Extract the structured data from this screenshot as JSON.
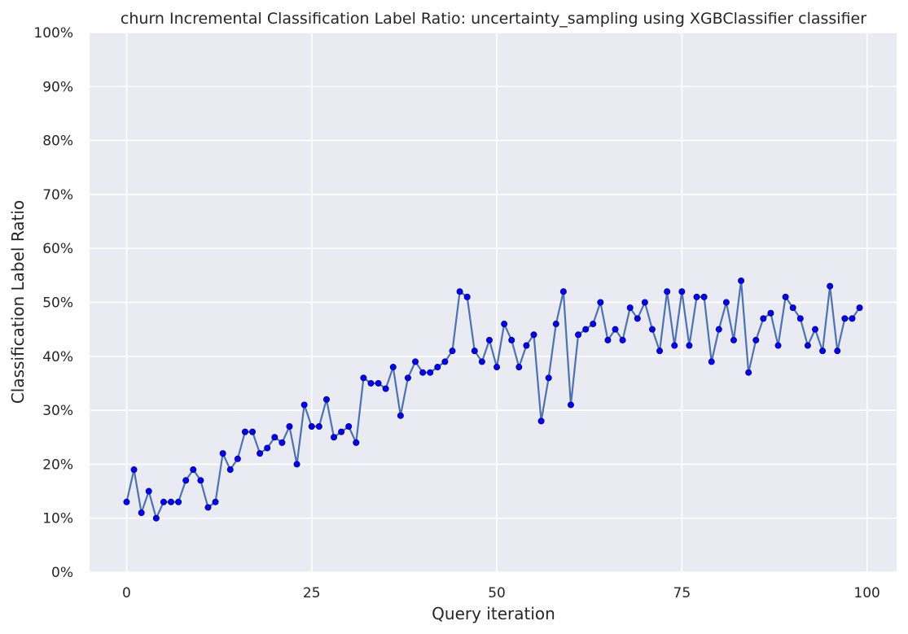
{
  "chart_data": {
    "type": "line",
    "title": "churn Incremental Classification Label Ratio: uncertainty_sampling using XGBClassifier classifier",
    "xlabel": "Query iteration",
    "ylabel": "Classification Label Ratio",
    "xlim": [
      -5,
      104
    ],
    "ylim": [
      0,
      1
    ],
    "xticks": [
      0,
      25,
      50,
      75,
      100
    ],
    "yticks": [
      0,
      0.1,
      0.2,
      0.3,
      0.4,
      0.5,
      0.6,
      0.7,
      0.8,
      0.9,
      1.0
    ],
    "ytick_labels": [
      "0%",
      "10%",
      "20%",
      "30%",
      "40%",
      "50%",
      "60%",
      "70%",
      "80%",
      "90%",
      "100%"
    ],
    "grid": true,
    "background_color": "#EAEAF2",
    "line_color": "#4C72B0",
    "marker_color": "#0000FF",
    "x": [
      0,
      1,
      2,
      3,
      4,
      5,
      6,
      7,
      8,
      9,
      10,
      11,
      12,
      13,
      14,
      15,
      16,
      17,
      18,
      19,
      20,
      21,
      22,
      23,
      24,
      25,
      26,
      27,
      28,
      29,
      30,
      31,
      32,
      33,
      34,
      35,
      36,
      37,
      38,
      39,
      40,
      41,
      42,
      43,
      44,
      45,
      46,
      47,
      48,
      49,
      50,
      51,
      52,
      53,
      54,
      55,
      56,
      57,
      58,
      59,
      60,
      61,
      62,
      63,
      64,
      65,
      66,
      67,
      68,
      69,
      70,
      71,
      72,
      73,
      74,
      75,
      76,
      77,
      78,
      79,
      80,
      81,
      82,
      83,
      84,
      85,
      86,
      87,
      88,
      89,
      90,
      91,
      92,
      93,
      94,
      95,
      96,
      97,
      98,
      99
    ],
    "y": [
      0.13,
      0.19,
      0.11,
      0.15,
      0.1,
      0.13,
      0.13,
      0.13,
      0.17,
      0.19,
      0.17,
      0.12,
      0.13,
      0.22,
      0.19,
      0.21,
      0.26,
      0.26,
      0.22,
      0.23,
      0.25,
      0.24,
      0.27,
      0.2,
      0.31,
      0.27,
      0.27,
      0.32,
      0.25,
      0.26,
      0.27,
      0.24,
      0.36,
      0.35,
      0.35,
      0.34,
      0.38,
      0.29,
      0.36,
      0.39,
      0.37,
      0.37,
      0.38,
      0.39,
      0.41,
      0.52,
      0.51,
      0.41,
      0.39,
      0.43,
      0.38,
      0.46,
      0.43,
      0.38,
      0.42,
      0.44,
      0.28,
      0.36,
      0.46,
      0.52,
      0.31,
      0.44,
      0.45,
      0.46,
      0.5,
      0.43,
      0.45,
      0.43,
      0.49,
      0.47,
      0.5,
      0.45,
      0.41,
      0.52,
      0.42,
      0.52,
      0.42,
      0.51,
      0.51,
      0.39,
      0.45,
      0.5,
      0.43,
      0.54,
      0.37,
      0.43,
      0.47,
      0.48,
      0.42,
      0.51,
      0.49,
      0.47,
      0.42,
      0.45,
      0.41,
      0.53,
      0.41,
      0.47,
      0.47,
      0.49
    ]
  }
}
